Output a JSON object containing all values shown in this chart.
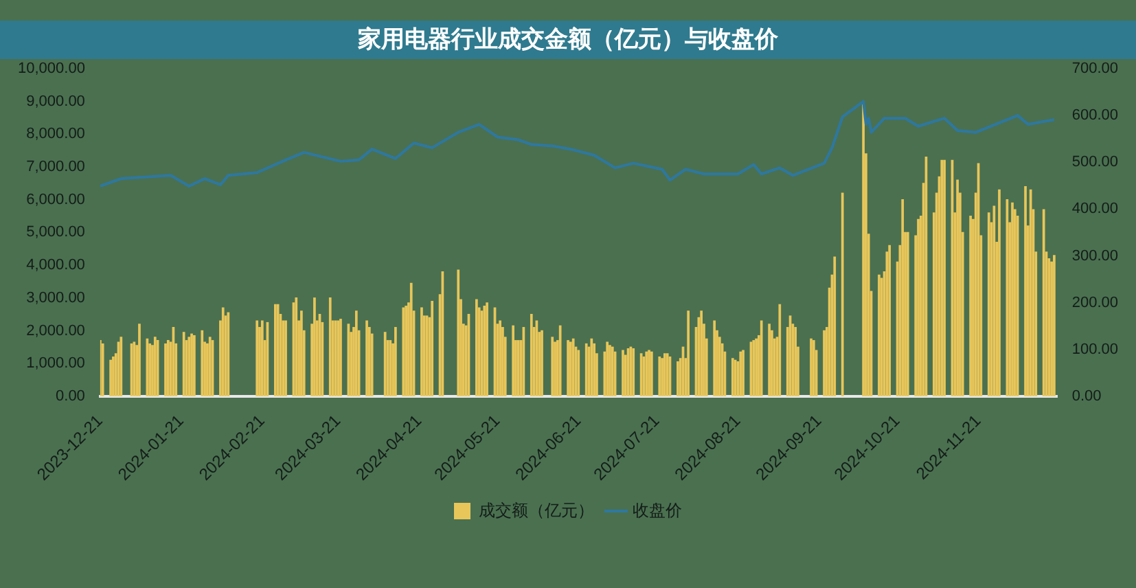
{
  "chart_data": {
    "type": "bar",
    "title": "家用电器行业成交金额（亿元）与收盘价",
    "x": [
      "2023-12-21",
      "2023-12-22",
      "2023-12-25",
      "2023-12-26",
      "2023-12-27",
      "2023-12-28",
      "2023-12-29",
      "2024-01-02",
      "2024-01-03",
      "2024-01-04",
      "2024-01-05",
      "2024-01-08",
      "2024-01-09",
      "2024-01-10",
      "2024-01-11",
      "2024-01-12",
      "2024-01-15",
      "2024-01-16",
      "2024-01-17",
      "2024-01-18",
      "2024-01-19",
      "2024-01-22",
      "2024-01-23",
      "2024-01-24",
      "2024-01-25",
      "2024-01-26",
      "2024-01-29",
      "2024-01-30",
      "2024-01-31",
      "2024-02-01",
      "2024-02-02",
      "2024-02-05",
      "2024-02-06",
      "2024-02-07",
      "2024-02-08",
      "2024-02-19",
      "2024-02-20",
      "2024-02-21",
      "2024-02-22",
      "2024-02-23",
      "2024-02-26",
      "2024-02-27",
      "2024-02-28",
      "2024-02-29",
      "2024-03-01",
      "2024-03-04",
      "2024-03-05",
      "2024-03-06",
      "2024-03-07",
      "2024-03-08",
      "2024-03-11",
      "2024-03-12",
      "2024-03-13",
      "2024-03-14",
      "2024-03-15",
      "2024-03-18",
      "2024-03-19",
      "2024-03-20",
      "2024-03-21",
      "2024-03-22",
      "2024-03-25",
      "2024-03-26",
      "2024-03-27",
      "2024-03-28",
      "2024-03-29",
      "2024-04-01",
      "2024-04-02",
      "2024-04-03",
      "2024-04-08",
      "2024-04-09",
      "2024-04-10",
      "2024-04-11",
      "2024-04-12",
      "2024-04-15",
      "2024-04-16",
      "2024-04-17",
      "2024-04-18",
      "2024-04-19",
      "2024-04-22",
      "2024-04-23",
      "2024-04-24",
      "2024-04-25",
      "2024-04-26",
      "2024-04-29",
      "2024-04-30",
      "2024-05-06",
      "2024-05-07",
      "2024-05-08",
      "2024-05-09",
      "2024-05-10",
      "2024-05-13",
      "2024-05-14",
      "2024-05-15",
      "2024-05-16",
      "2024-05-17",
      "2024-05-20",
      "2024-05-21",
      "2024-05-22",
      "2024-05-23",
      "2024-05-24",
      "2024-05-27",
      "2024-05-28",
      "2024-05-29",
      "2024-05-30",
      "2024-05-31",
      "2024-06-03",
      "2024-06-04",
      "2024-06-05",
      "2024-06-06",
      "2024-06-07",
      "2024-06-11",
      "2024-06-12",
      "2024-06-13",
      "2024-06-14",
      "2024-06-17",
      "2024-06-18",
      "2024-06-19",
      "2024-06-20",
      "2024-06-21",
      "2024-06-24",
      "2024-06-25",
      "2024-06-26",
      "2024-06-27",
      "2024-06-28",
      "2024-07-01",
      "2024-07-02",
      "2024-07-03",
      "2024-07-04",
      "2024-07-05",
      "2024-07-08",
      "2024-07-09",
      "2024-07-10",
      "2024-07-11",
      "2024-07-12",
      "2024-07-15",
      "2024-07-16",
      "2024-07-17",
      "2024-07-18",
      "2024-07-19",
      "2024-07-22",
      "2024-07-23",
      "2024-07-24",
      "2024-07-25",
      "2024-07-26",
      "2024-07-29",
      "2024-07-30",
      "2024-07-31",
      "2024-08-01",
      "2024-08-02",
      "2024-08-05",
      "2024-08-06",
      "2024-08-07",
      "2024-08-08",
      "2024-08-09",
      "2024-08-12",
      "2024-08-13",
      "2024-08-14",
      "2024-08-15",
      "2024-08-16",
      "2024-08-19",
      "2024-08-20",
      "2024-08-21",
      "2024-08-22",
      "2024-08-23",
      "2024-08-26",
      "2024-08-27",
      "2024-08-28",
      "2024-08-29",
      "2024-08-30",
      "2024-09-02",
      "2024-09-03",
      "2024-09-04",
      "2024-09-05",
      "2024-09-06",
      "2024-09-09",
      "2024-09-10",
      "2024-09-11",
      "2024-09-12",
      "2024-09-13",
      "2024-09-18",
      "2024-09-19",
      "2024-09-20",
      "2024-09-23",
      "2024-09-24",
      "2024-09-25",
      "2024-09-26",
      "2024-09-27",
      "2024-09-30",
      "2024-10-08",
      "2024-10-09",
      "2024-10-10",
      "2024-10-11",
      "2024-10-14",
      "2024-10-15",
      "2024-10-16",
      "2024-10-17",
      "2024-10-18",
      "2024-10-21",
      "2024-10-22",
      "2024-10-23",
      "2024-10-24",
      "2024-10-25",
      "2024-10-28",
      "2024-10-29",
      "2024-10-30",
      "2024-10-31",
      "2024-11-01",
      "2024-11-04",
      "2024-11-05",
      "2024-11-06",
      "2024-11-07",
      "2024-11-08",
      "2024-11-11",
      "2024-11-12",
      "2024-11-13",
      "2024-11-14",
      "2024-11-15",
      "2024-11-18",
      "2024-11-19",
      "2024-11-20",
      "2024-11-21",
      "2024-11-22",
      "2024-11-25",
      "2024-11-26",
      "2024-11-27",
      "2024-11-28",
      "2024-11-29",
      "2024-12-02",
      "2024-12-03",
      "2024-12-04",
      "2024-12-05",
      "2024-12-06",
      "2024-12-09",
      "2024-12-10",
      "2024-12-11",
      "2024-12-12",
      "2024-12-13",
      "2024-12-16",
      "2024-12-17",
      "2024-12-18",
      "2024-12-19",
      "2024-12-20"
    ],
    "series": [
      {
        "name": "成交额（亿元）",
        "color": "#e8c65a",
        "values": [
          1700,
          1600,
          1100,
          1200,
          1300,
          1650,
          1800,
          1600,
          1650,
          1550,
          2200,
          1750,
          1600,
          1550,
          1800,
          1700,
          1600,
          1700,
          1650,
          2100,
          1600,
          1950,
          1700,
          1800,
          1900,
          1850,
          2000,
          1650,
          1600,
          1800,
          1700,
          2300,
          2700,
          2450,
          2550,
          2300,
          2100,
          2300,
          1700,
          2250,
          2800,
          2800,
          2500,
          2300,
          2300,
          2850,
          3000,
          2300,
          2600,
          2000,
          2200,
          3000,
          2300,
          2500,
          2250,
          3000,
          2300,
          2300,
          2300,
          2350,
          2200,
          1950,
          2100,
          2600,
          2000,
          2300,
          2100,
          1900,
          1950,
          1700,
          1700,
          1600,
          2100,
          2700,
          2750,
          2850,
          3450,
          2600,
          2700,
          2450,
          2450,
          2400,
          2900,
          3100,
          3800,
          3850,
          2950,
          2200,
          2150,
          2500,
          2950,
          2700,
          2600,
          2750,
          2850,
          2700,
          2200,
          2300,
          2100,
          1800,
          2150,
          1700,
          1700,
          1700,
          2100,
          2500,
          2100,
          2300,
          1950,
          2000,
          1800,
          1650,
          1700,
          2150,
          1700,
          1650,
          1750,
          1500,
          1400,
          1600,
          1500,
          1750,
          1600,
          1300,
          1350,
          1650,
          1550,
          1500,
          1350,
          1400,
          1250,
          1450,
          1500,
          1450,
          1300,
          1200,
          1350,
          1400,
          1350,
          1200,
          1150,
          1300,
          1300,
          1200,
          1050,
          1150,
          1500,
          1150,
          2600,
          2100,
          2400,
          2600,
          2200,
          1750,
          2300,
          2000,
          1800,
          1600,
          1350,
          1150,
          1100,
          1050,
          1350,
          1400,
          1650,
          1700,
          1750,
          1850,
          2300,
          2200,
          2000,
          1750,
          1800,
          2800,
          2100,
          2450,
          2200,
          2100,
          1500,
          1750,
          1700,
          1400,
          2000,
          2100,
          3300,
          3700,
          4250,
          6200,
          9000,
          7400,
          4950,
          3200,
          3700,
          3600,
          3800,
          4400,
          4600,
          4100,
          4600,
          6000,
          5000,
          5000,
          4900,
          5400,
          5500,
          6500,
          7300,
          5600,
          6200,
          6700,
          7200,
          7200,
          7200,
          5600,
          6600,
          6200,
          5000,
          5500,
          5400,
          6200,
          7100,
          4900,
          5600,
          5300,
          5800,
          4700,
          6300,
          6000,
          5300,
          5900,
          5700,
          5500,
          6400,
          5200,
          6300,
          5700,
          4400,
          5700,
          4400,
          4200,
          4100,
          4300
        ]
      },
      {
        "name": "收盘价",
        "type": "line",
        "axis": "y2",
        "color": "#2e78a0",
        "x": [
          "2023-12-21",
          "2023-12-29",
          "2024-01-17",
          "2024-01-24",
          "2024-01-30",
          "2024-02-05",
          "2024-02-08",
          "2024-02-19",
          "2024-03-01",
          "2024-03-08",
          "2024-03-22",
          "2024-03-29",
          "2024-04-03",
          "2024-04-12",
          "2024-04-19",
          "2024-04-26",
          "2024-05-06",
          "2024-05-14",
          "2024-05-21",
          "2024-05-29",
          "2024-06-03",
          "2024-06-11",
          "2024-06-18",
          "2024-06-27",
          "2024-07-05",
          "2024-07-12",
          "2024-07-23",
          "2024-07-26",
          "2024-08-01",
          "2024-08-08",
          "2024-08-21",
          "2024-08-27",
          "2024-08-30",
          "2024-09-06",
          "2024-09-11",
          "2024-09-23",
          "2024-09-26",
          "2024-09-30",
          "2024-10-08",
          "2024-10-09",
          "2024-10-10",
          "2024-10-11",
          "2024-10-16",
          "2024-10-24",
          "2024-10-29",
          "2024-11-08",
          "2024-11-13",
          "2024-11-20",
          "2024-12-06",
          "2024-12-10",
          "2024-12-20"
        ],
        "values": [
          449,
          465,
          472,
          449,
          465,
          452,
          472,
          478,
          505,
          521,
          502,
          505,
          528,
          508,
          541,
          531,
          564,
          581,
          554,
          548,
          538,
          535,
          528,
          515,
          488,
          498,
          485,
          462,
          485,
          475,
          475,
          495,
          475,
          488,
          472,
          498,
          531,
          597,
          630,
          581,
          594,
          564,
          594,
          594,
          577,
          594,
          568,
          564,
          600,
          581,
          591
        ]
      }
    ],
    "xlim": [
      "2023-12-21",
      "2024-12-21"
    ],
    "xticks": [
      "2023-12-21",
      "2024-01-21",
      "2024-02-21",
      "2024-03-21",
      "2024-04-21",
      "2024-05-21",
      "2024-06-21",
      "2024-07-21",
      "2024-08-21",
      "2024-09-21",
      "2024-10-21",
      "2024-11-21"
    ],
    "ylim": [
      0,
      10000
    ],
    "yticks": [
      {
        "value": 0,
        "label": "0.00"
      },
      {
        "value": 1000,
        "label": "1,000.00"
      },
      {
        "value": 2000,
        "label": "2,000.00"
      },
      {
        "value": 3000,
        "label": "3,000.00"
      },
      {
        "value": 4000,
        "label": "4,000.00"
      },
      {
        "value": 5000,
        "label": "5,000.00"
      },
      {
        "value": 6000,
        "label": "6,000.00"
      },
      {
        "value": 7000,
        "label": "7,000.00"
      },
      {
        "value": 8000,
        "label": "8,000.00"
      },
      {
        "value": 9000,
        "label": "9,000.00"
      },
      {
        "value": 10000,
        "label": "10,000.00"
      }
    ],
    "y2lim": [
      0,
      700
    ],
    "y2ticks": [
      {
        "value": 0,
        "label": "0.00"
      },
      {
        "value": 100,
        "label": "100.00"
      },
      {
        "value": 200,
        "label": "200.00"
      },
      {
        "value": 300,
        "label": "300.00"
      },
      {
        "value": 400,
        "label": "400.00"
      },
      {
        "value": 500,
        "label": "500.00"
      },
      {
        "value": 600,
        "label": "600.00"
      },
      {
        "value": 700,
        "label": "700.00"
      }
    ],
    "grid": false,
    "legend": "bottom"
  }
}
